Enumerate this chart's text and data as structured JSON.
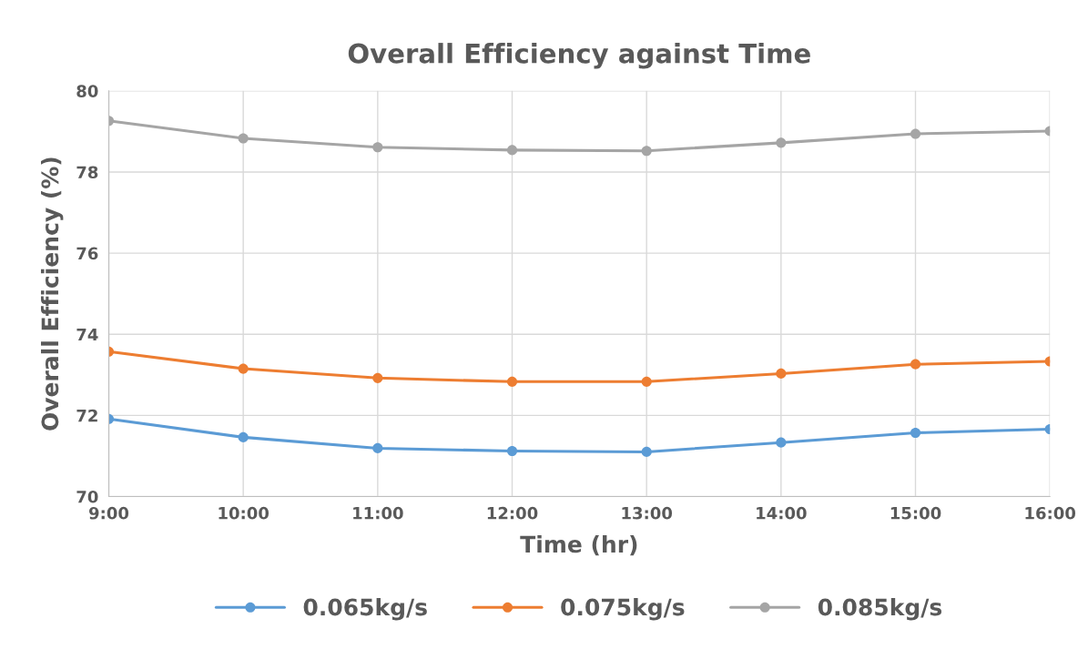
{
  "chart_data": {
    "type": "line",
    "title": "Overall Efficiency against Time",
    "xlabel": "Time (hr)",
    "ylabel": "Overall Efficiency (%)",
    "x": [
      9,
      10,
      11,
      12,
      13,
      14,
      15,
      16
    ],
    "series": [
      {
        "name": "0.065kg/s",
        "color": "#5b9bd5",
        "values": [
          71.91,
          71.46,
          71.19,
          71.12,
          71.1,
          71.33,
          71.57,
          71.66
        ]
      },
      {
        "name": "0.075kg/s",
        "color": "#ed7d31",
        "values": [
          73.57,
          73.15,
          72.92,
          72.83,
          72.83,
          73.03,
          73.26,
          73.33
        ]
      },
      {
        "name": "0.085kg/s",
        "color": "#a5a5a5",
        "values": [
          79.26,
          78.83,
          78.61,
          78.54,
          78.52,
          78.72,
          78.94,
          79.01
        ]
      }
    ],
    "xlim": [
      9,
      16
    ],
    "xticks": [
      {
        "value": 9,
        "label": "9:00"
      },
      {
        "value": 10,
        "label": "10:00"
      },
      {
        "value": 11,
        "label": "11:00"
      },
      {
        "value": 12,
        "label": "12:00"
      },
      {
        "value": 13,
        "label": "13:00"
      },
      {
        "value": 14,
        "label": "14:00"
      },
      {
        "value": 15,
        "label": "15:00"
      },
      {
        "value": 16,
        "label": "16:00"
      }
    ],
    "ylim": [
      70,
      80
    ],
    "yticks": [
      70,
      72,
      74,
      76,
      78,
      80
    ],
    "grid": true,
    "legend": "bottom",
    "marker": "circle",
    "line_style": "solid"
  }
}
